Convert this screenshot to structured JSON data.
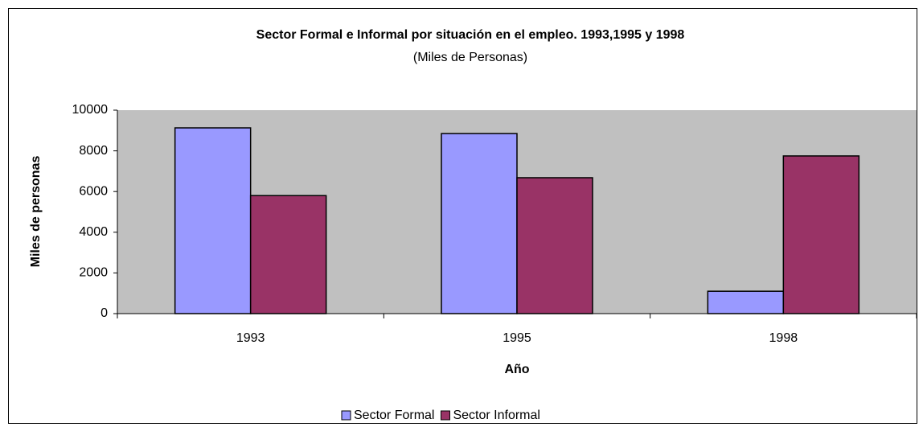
{
  "chart_data": {
    "type": "bar",
    "title": "Sector Formal e Informal por situación en el empleo. 1993,1995 y 1998",
    "subtitle": "(Miles de Personas)",
    "x_label": "Año",
    "y_label": "Miles de personas",
    "categories": [
      "1993",
      "1995",
      "1998"
    ],
    "series": [
      {
        "name": "Sector Formal",
        "color": "#9999ff",
        "values": [
          9130,
          8850,
          1100
        ]
      },
      {
        "name": "Sector Informal",
        "color": "#993366",
        "values": [
          5800,
          6680,
          7750
        ]
      }
    ],
    "ylim": [
      0,
      10000
    ],
    "yticks": [
      0,
      2000,
      4000,
      6000,
      8000,
      10000
    ],
    "grid": false,
    "legend": "bottom"
  }
}
